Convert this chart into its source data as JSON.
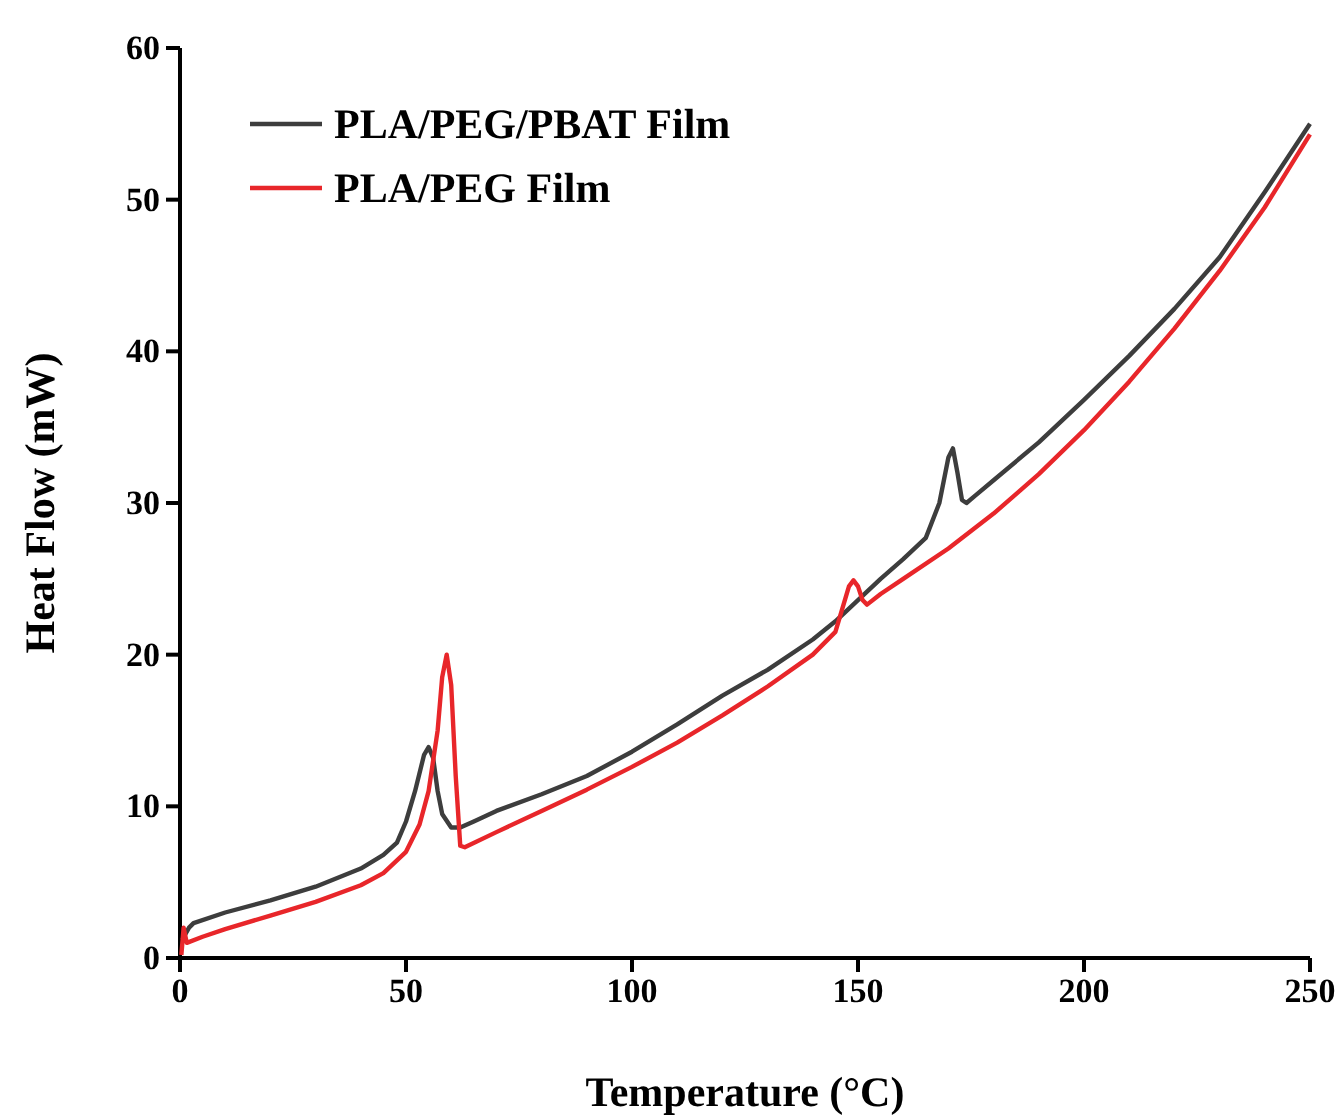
{
  "chart_data": {
    "type": "line",
    "xlabel": "Temperature (°C)",
    "ylabel": "Heat Flow (mW)",
    "xlim": [
      0,
      250
    ],
    "ylim": [
      0,
      60
    ],
    "xticks": [
      0,
      50,
      100,
      150,
      200,
      250
    ],
    "yticks": [
      0,
      10,
      20,
      30,
      40,
      50,
      60
    ],
    "grid": false,
    "legend": "top left",
    "marker": "none",
    "line_style": "solid",
    "series": [
      {
        "name": "PLA/PEG/PBAT Film",
        "color": "#3d3d3d",
        "x": [
          0.5,
          2,
          3,
          10,
          20,
          30,
          40,
          45,
          48,
          50,
          52,
          54,
          55,
          56,
          57,
          58,
          60,
          62,
          65,
          70,
          80,
          90,
          100,
          110,
          120,
          130,
          140,
          145,
          150,
          155,
          160,
          165,
          168,
          170,
          171,
          172,
          173,
          174,
          176,
          180,
          190,
          200,
          210,
          220,
          230,
          240,
          250
        ],
        "values": [
          1.2,
          2.0,
          2.3,
          3.0,
          3.8,
          4.7,
          5.9,
          6.8,
          7.6,
          9,
          11,
          13.4,
          13.9,
          13.2,
          11,
          9.5,
          8.6,
          8.6,
          9.0,
          9.7,
          10.8,
          12.0,
          13.6,
          15.4,
          17.3,
          19.0,
          21.0,
          22.2,
          23.6,
          25,
          26.3,
          27.7,
          30,
          33,
          33.6,
          32,
          30.2,
          30,
          30.5,
          31.5,
          34.0,
          36.8,
          39.7,
          42.8,
          46.2,
          50.5,
          55.0
        ]
      },
      {
        "name": "PLA/PEG Film",
        "color": "#e8262a",
        "x": [
          0.3,
          0.8,
          1.5,
          5,
          10,
          20,
          30,
          40,
          45,
          50,
          53,
          55,
          57,
          58,
          59,
          60,
          61,
          62,
          63,
          70,
          80,
          90,
          100,
          110,
          120,
          130,
          140,
          145,
          148,
          149,
          150,
          151,
          152,
          155,
          160,
          170,
          180,
          190,
          200,
          210,
          220,
          230,
          240,
          250
        ],
        "values": [
          0.2,
          2,
          1.0,
          1.4,
          1.9,
          2.8,
          3.7,
          4.8,
          5.6,
          7.0,
          8.8,
          11,
          15,
          18.5,
          20,
          18,
          12,
          7.4,
          7.3,
          8.3,
          9.7,
          11.1,
          12.6,
          14.2,
          16,
          17.9,
          20.0,
          21.5,
          24.5,
          24.9,
          24.5,
          23.6,
          23.3,
          24.0,
          25.0,
          27.0,
          29.3,
          31.9,
          34.8,
          38,
          41.5,
          45.3,
          49.5,
          54.3
        ]
      }
    ]
  }
}
